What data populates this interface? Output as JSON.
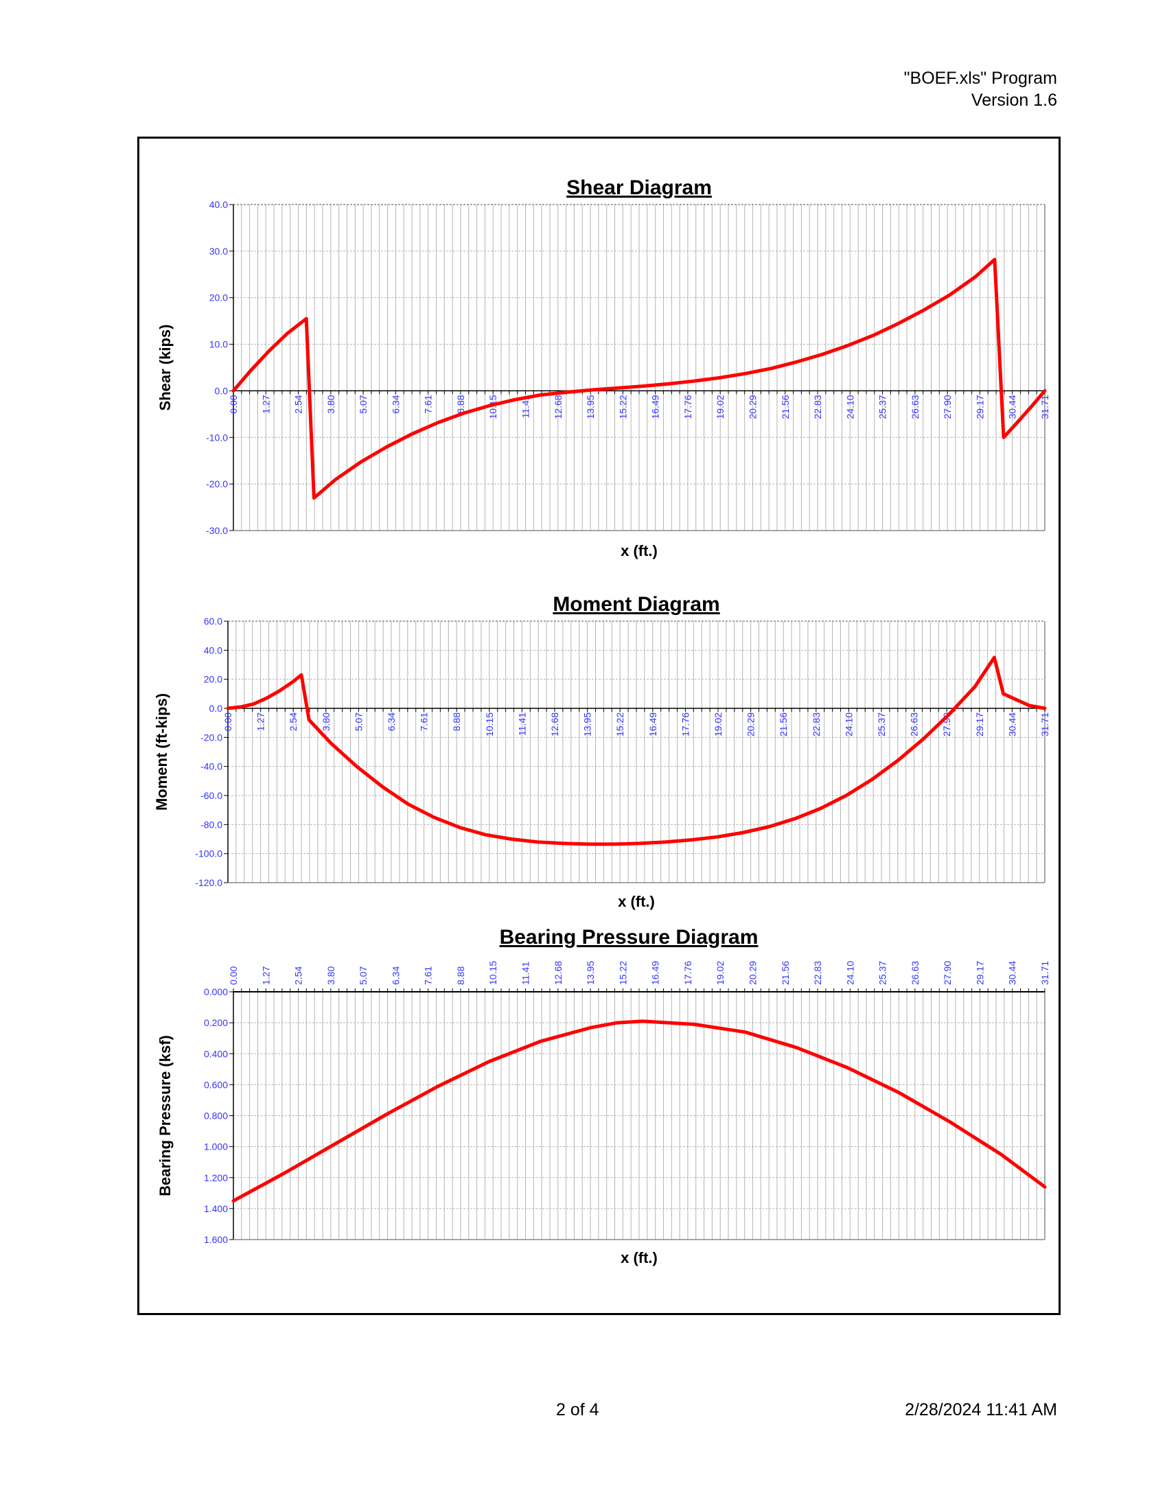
{
  "header": {
    "program": "\"BOEF.xls\" Program",
    "version": "Version 1.6"
  },
  "footer": {
    "page": "2 of 4",
    "datetime": "2/28/2024  11:41 AM"
  },
  "colors": {
    "series": "#ff0000",
    "tick_label": "#3333ff",
    "grid": "#b4b4b4",
    "frame": "#000000"
  },
  "x_tick_labels": [
    "0.00",
    "1.27",
    "2.54",
    "3.80",
    "5.07",
    "6.34",
    "7.61",
    "8.88",
    "10.15",
    "11.41",
    "12.68",
    "13.95",
    "15.22",
    "16.49",
    "17.76",
    "19.02",
    "20.29",
    "21.56",
    "22.83",
    "24.10",
    "25.37",
    "26.63",
    "27.90",
    "29.17",
    "30.44",
    "31.71"
  ],
  "chart_data": [
    {
      "type": "line",
      "title": "Shear Diagram",
      "xlabel": "x (ft.)",
      "ylabel": "Shear (kips)",
      "xlim": [
        0,
        31.71
      ],
      "ylim": [
        -30,
        40
      ],
      "y_ticks": [
        40,
        30,
        20,
        10,
        0,
        -10,
        -20,
        -30
      ],
      "y_tick_labels": [
        "40.0",
        "30.0",
        "20.0",
        "10.0",
        "0.0",
        "-10.0",
        "-20.0",
        "-30.0"
      ],
      "x_tick_position": "inside-at-zero",
      "grid": true,
      "x": [
        0,
        0.7,
        1.4,
        2.1,
        2.85,
        3.15,
        4.0,
        5.0,
        6.0,
        7.0,
        8.0,
        9.0,
        10.0,
        11.0,
        12.0,
        13.0,
        14.0,
        15.0,
        16.0,
        17.0,
        18.0,
        19.0,
        20.0,
        21.0,
        22.0,
        23.0,
        24.0,
        25.0,
        26.0,
        27.0,
        28.0,
        29.0,
        29.75,
        30.1,
        30.6,
        31.2,
        31.71
      ],
      "y": [
        0,
        4.5,
        8.6,
        12.3,
        15.5,
        -23.0,
        -19.0,
        -15.2,
        -12.0,
        -9.2,
        -6.8,
        -4.8,
        -3.2,
        -1.9,
        -0.9,
        -0.3,
        0.2,
        0.6,
        1.0,
        1.5,
        2.1,
        2.8,
        3.7,
        4.8,
        6.2,
        7.8,
        9.7,
        11.9,
        14.5,
        17.4,
        20.6,
        24.5,
        28.2,
        -10.0,
        -7.0,
        -3.3,
        0
      ]
    },
    {
      "type": "line",
      "title": "Moment Diagram",
      "xlabel": "x (ft.)",
      "ylabel": "Moment (ft-kips)",
      "xlim": [
        0,
        31.71
      ],
      "ylim": [
        -120,
        60
      ],
      "y_ticks": [
        60,
        40,
        20,
        0,
        -20,
        -40,
        -60,
        -80,
        -100,
        -120
      ],
      "y_tick_labels": [
        "60.0",
        "40.0",
        "20.0",
        "0.0",
        "-20.0",
        "-40.0",
        "-60.0",
        "-80.0",
        "-100.0",
        "-120.0"
      ],
      "x_tick_position": "inside-at-zero",
      "grid": true,
      "x": [
        0,
        0.5,
        1.0,
        1.5,
        2.0,
        2.5,
        2.85,
        3.15,
        4.0,
        5.0,
        6.0,
        7.0,
        8.0,
        9.0,
        10.0,
        11.0,
        12.0,
        13.0,
        14.0,
        15.0,
        16.0,
        17.0,
        18.0,
        19.0,
        20.0,
        21.0,
        22.0,
        23.0,
        24.0,
        25.0,
        26.0,
        27.0,
        28.0,
        29.0,
        29.75,
        30.1,
        30.6,
        31.1,
        31.71
      ],
      "y": [
        0,
        1,
        3,
        7,
        12,
        18,
        23,
        -8,
        -24,
        -40,
        -54,
        -66,
        -75,
        -82,
        -87,
        -90,
        -92,
        -93,
        -93.5,
        -93.5,
        -93,
        -92,
        -90.5,
        -88.5,
        -85.5,
        -81.5,
        -76,
        -69,
        -60,
        -49,
        -36,
        -21,
        -4,
        15,
        35,
        10,
        6,
        2,
        0
      ]
    },
    {
      "type": "line",
      "title": "Bearing Pressure Diagram",
      "xlabel": "x (ft.)",
      "ylabel": "Bearing Pressure (ksf)",
      "xlim": [
        0,
        31.71
      ],
      "ylim": [
        1.6,
        0
      ],
      "y_axis_inverted": true,
      "y_ticks": [
        0,
        0.2,
        0.4,
        0.6,
        0.8,
        1.0,
        1.2,
        1.4,
        1.6
      ],
      "y_tick_labels": [
        "0.000",
        "0.200",
        "0.400",
        "0.600",
        "0.800",
        "1.000",
        "1.200",
        "1.400",
        "1.600"
      ],
      "x_tick_position": "top",
      "grid": true,
      "x": [
        0,
        2,
        4,
        6,
        8,
        10,
        12,
        14,
        15,
        16,
        18,
        20,
        22,
        24,
        26,
        28,
        30,
        31.71
      ],
      "y": [
        1.35,
        1.17,
        0.98,
        0.79,
        0.61,
        0.45,
        0.32,
        0.23,
        0.2,
        0.19,
        0.21,
        0.26,
        0.36,
        0.49,
        0.65,
        0.84,
        1.05,
        1.26
      ]
    }
  ]
}
